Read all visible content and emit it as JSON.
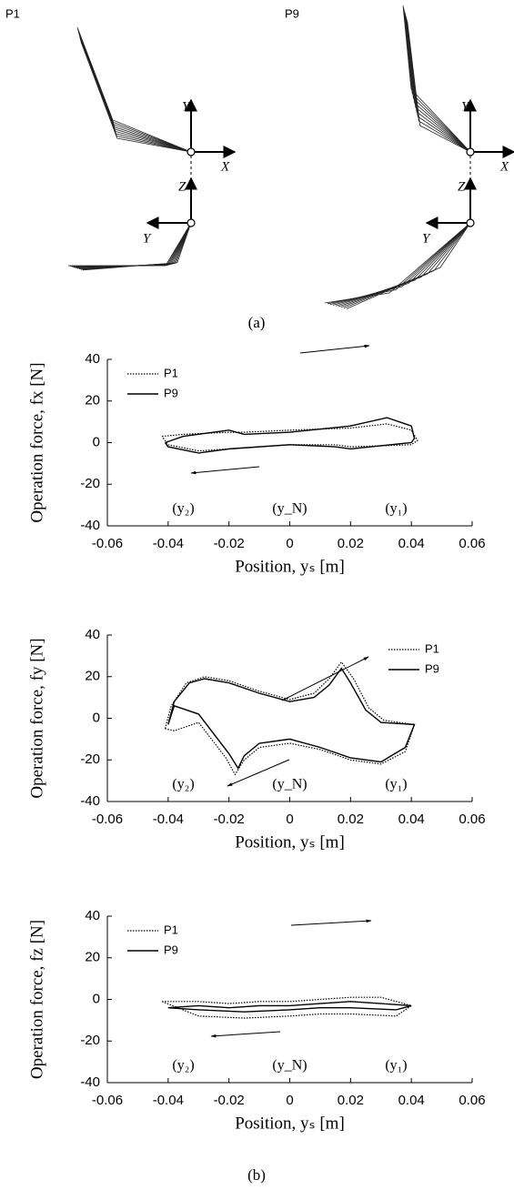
{
  "panel_a": {
    "left_label": "P1",
    "right_label": "P9",
    "frame_labels": {
      "x": "X",
      "y": "Y",
      "z": "Z",
      "y_lower": "Y"
    },
    "caption": "(a)"
  },
  "caption_b": "(b)",
  "chart_data": [
    {
      "type": "line",
      "xlabel": "Position, yₛ [m]",
      "ylabel": "Operation force, fx [N]",
      "xlim": [
        -0.06,
        0.06
      ],
      "xticks": [
        -0.06,
        -0.04,
        -0.02,
        0,
        0.02,
        0.04,
        0.06
      ],
      "ylim": [
        -40,
        40
      ],
      "yticks": [
        -40,
        -20,
        0,
        20,
        40
      ],
      "legend": "upper left",
      "annotations": [
        "(y₂)",
        "(y_N)",
        "(y₁)"
      ],
      "series": [
        {
          "name": "P1",
          "color": "#000000",
          "style": "dotted",
          "x": [
            -0.042,
            -0.035,
            -0.02,
            -0.015,
            0,
            0.02,
            0.032,
            0.04,
            0.042,
            0.04,
            0.02,
            0.015,
            0,
            -0.02,
            -0.03,
            -0.04,
            -0.042
          ],
          "values": [
            3,
            4,
            5,
            5,
            6,
            7,
            9,
            6,
            1,
            -1,
            -2,
            -1,
            -1,
            -3,
            -4,
            -1,
            3
          ]
        },
        {
          "name": "P9",
          "color": "#000000",
          "style": "solid",
          "x": [
            -0.041,
            -0.035,
            -0.02,
            -0.015,
            0,
            0.02,
            0.032,
            0.04,
            0.041,
            0.04,
            0.02,
            0.015,
            0,
            -0.02,
            -0.03,
            -0.04,
            -0.041
          ],
          "values": [
            0,
            3,
            6,
            4,
            5,
            8,
            12,
            8,
            2,
            0,
            -3,
            -2,
            -1,
            -3,
            -5,
            -2,
            0
          ]
        }
      ]
    },
    {
      "type": "line",
      "xlabel": "Position, yₛ [m]",
      "ylabel": "Operation force, fy [N]",
      "xlim": [
        -0.06,
        0.06
      ],
      "xticks": [
        -0.06,
        -0.04,
        -0.02,
        0,
        0.02,
        0.04,
        0.06
      ],
      "ylim": [
        -40,
        40
      ],
      "yticks": [
        -40,
        -20,
        0,
        20,
        40
      ],
      "legend": "upper right",
      "annotations": [
        "(y₂)",
        "(y_N)",
        "(y₁)"
      ],
      "series": [
        {
          "name": "P1",
          "color": "#000000",
          "style": "dotted",
          "x": [
            -0.041,
            -0.039,
            -0.034,
            -0.028,
            -0.02,
            -0.01,
            0,
            0.008,
            0.013,
            0.017,
            0.021,
            0.026,
            0.031,
            0.041,
            0.038,
            0.03,
            0.02,
            0.01,
            0,
            -0.01,
            -0.015,
            -0.018,
            -0.021,
            -0.03,
            -0.038,
            -0.041
          ],
          "values": [
            -5,
            6,
            17,
            20,
            18,
            13,
            9,
            12,
            19,
            27,
            19,
            5,
            -1,
            -3,
            -16,
            -22,
            -20,
            -15,
            -12,
            -14,
            -20,
            -27,
            -19,
            -2,
            -6,
            -5
          ]
        },
        {
          "name": "P9",
          "color": "#000000",
          "style": "solid",
          "x": [
            -0.04,
            -0.038,
            -0.033,
            -0.028,
            -0.02,
            -0.01,
            0,
            0.008,
            0.013,
            0.017,
            0.02,
            0.025,
            0.03,
            0.041,
            0.038,
            0.03,
            0.02,
            0.01,
            0,
            -0.01,
            -0.015,
            -0.017,
            -0.02,
            -0.03,
            -0.038,
            -0.04
          ],
          "values": [
            -3,
            8,
            17,
            19,
            17,
            12,
            8,
            10,
            16,
            24,
            17,
            4,
            -2,
            -3,
            -14,
            -21,
            -19,
            -14,
            -10,
            -12,
            -18,
            -24,
            -17,
            2,
            6,
            -3
          ]
        }
      ]
    },
    {
      "type": "line",
      "xlabel": "Position, yₛ [m]",
      "ylabel": "Operation force, fz [N]",
      "xlim": [
        -0.06,
        0.06
      ],
      "xticks": [
        -0.06,
        -0.04,
        -0.02,
        0,
        0.02,
        0.04,
        0.06
      ],
      "ylim": [
        -40,
        40
      ],
      "yticks": [
        -40,
        -20,
        0,
        20,
        40
      ],
      "legend": "upper left",
      "annotations": [
        "(y₂)",
        "(y_N)",
        "(y₁)"
      ],
      "series": [
        {
          "name": "P1",
          "color": "#000000",
          "style": "dotted",
          "x": [
            -0.042,
            -0.03,
            -0.02,
            -0.01,
            0,
            0.01,
            0.02,
            0.03,
            0.04,
            0.035,
            0.02,
            0.01,
            0,
            -0.015,
            -0.03,
            -0.042
          ],
          "values": [
            -1,
            -1,
            -2,
            -1,
            -1,
            0,
            1,
            1,
            -3,
            -8,
            -7,
            -7,
            -8,
            -9,
            -8,
            -1
          ]
        },
        {
          "name": "P9",
          "color": "#000000",
          "style": "solid",
          "x": [
            -0.04,
            -0.03,
            -0.02,
            -0.01,
            0,
            0.01,
            0.02,
            0.03,
            0.04,
            0.035,
            0.02,
            0.01,
            0,
            -0.015,
            -0.03,
            -0.04
          ],
          "values": [
            -4,
            -3,
            -4,
            -3,
            -3,
            -2,
            -1,
            -2,
            -3,
            -5,
            -4,
            -4,
            -5,
            -6,
            -5,
            -4
          ]
        }
      ]
    }
  ]
}
